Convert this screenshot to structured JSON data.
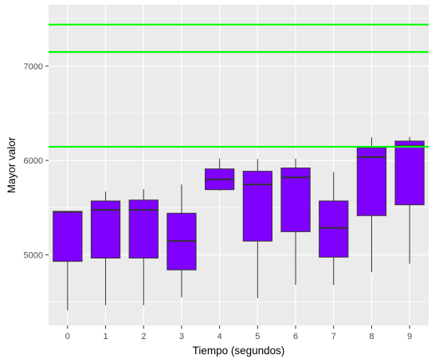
{
  "chart_data": {
    "type": "boxplot",
    "xlabel": "Tiempo (segundos)",
    "ylabel": "Mayor valor",
    "categories": [
      "0",
      "1",
      "2",
      "3",
      "4",
      "5",
      "6",
      "7",
      "8",
      "9"
    ],
    "yticks": [
      5000,
      6000,
      7000
    ],
    "ylim": [
      4250,
      7650
    ],
    "grid": true,
    "boxes": [
      {
        "x": "0",
        "min": 4410,
        "q1": 4930,
        "median": 5455,
        "q3": 5460,
        "max": 5465
      },
      {
        "x": "1",
        "min": 4465,
        "q1": 4965,
        "median": 5475,
        "q3": 5570,
        "max": 5670
      },
      {
        "x": "2",
        "min": 4465,
        "q1": 4965,
        "median": 5475,
        "q3": 5580,
        "max": 5695
      },
      {
        "x": "3",
        "min": 4550,
        "q1": 4840,
        "median": 5145,
        "q3": 5440,
        "max": 5745
      },
      {
        "x": "4",
        "min": 5680,
        "q1": 5690,
        "median": 5800,
        "q3": 5910,
        "max": 6020
      },
      {
        "x": "5",
        "min": 4540,
        "q1": 5145,
        "median": 5745,
        "q3": 5885,
        "max": 6015
      },
      {
        "x": "6",
        "min": 4680,
        "q1": 5245,
        "median": 5820,
        "q3": 5920,
        "max": 6020
      },
      {
        "x": "7",
        "min": 4680,
        "q1": 4975,
        "median": 5285,
        "q3": 5570,
        "max": 5875
      },
      {
        "x": "8",
        "min": 4815,
        "q1": 5415,
        "median": 6035,
        "q3": 6135,
        "max": 6245
      },
      {
        "x": "9",
        "min": 4905,
        "q1": 5530,
        "median": 6155,
        "q3": 6205,
        "max": 6250
      }
    ],
    "hlines": [
      6145,
      7150,
      7440
    ],
    "colors": {
      "box_fill": "#7f00ff",
      "box_stroke": "#333333",
      "hline": "#00ff00",
      "panel_bg": "#ebebeb",
      "grid": "#ffffff"
    }
  }
}
